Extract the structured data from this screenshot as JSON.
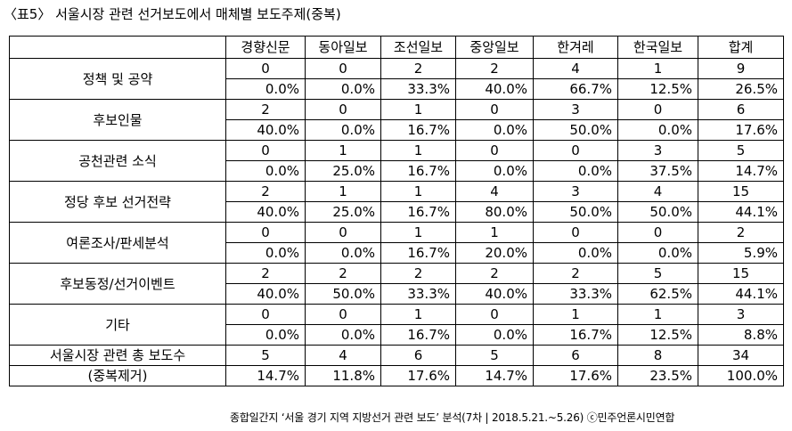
{
  "title": "〈표5〉 서울시장 관련 선거보도에서 매체별 보도주제(중복)",
  "columns": [
    "경향신문",
    "동아일보",
    "조선일보",
    "중앙일보",
    "한겨레",
    "한국일보",
    "합계"
  ],
  "rows": [
    {
      "category": "정책 및 공약",
      "counts": [
        "0",
        "0",
        "2",
        "2",
        "4",
        "1",
        "9"
      ],
      "percents": [
        "0.0%",
        "0.0%",
        "33.3%",
        "40.0%",
        "66.7%",
        "12.5%",
        "26.5%"
      ]
    },
    {
      "category": "후보인물",
      "counts": [
        "2",
        "0",
        "1",
        "0",
        "3",
        "0",
        "6"
      ],
      "percents": [
        "40.0%",
        "0.0%",
        "16.7%",
        "0.0%",
        "50.0%",
        "0.0%",
        "17.6%"
      ]
    },
    {
      "category": "공천관련 소식",
      "counts": [
        "0",
        "1",
        "1",
        "0",
        "0",
        "3",
        "5"
      ],
      "percents": [
        "0.0%",
        "25.0%",
        "16.7%",
        "0.0%",
        "0.0%",
        "37.5%",
        "14.7%"
      ]
    },
    {
      "category": "정당 후보 선거전략",
      "counts": [
        "2",
        "1",
        "1",
        "4",
        "3",
        "4",
        "15"
      ],
      "percents": [
        "40.0%",
        "25.0%",
        "16.7%",
        "80.0%",
        "50.0%",
        "50.0%",
        "44.1%"
      ]
    },
    {
      "category": "여론조사/판세분석",
      "counts": [
        "0",
        "0",
        "1",
        "1",
        "0",
        "0",
        "2"
      ],
      "percents": [
        "0.0%",
        "0.0%",
        "16.7%",
        "20.0%",
        "0.0%",
        "0.0%",
        "5.9%"
      ]
    },
    {
      "category": "후보동정/선거이벤트",
      "counts": [
        "2",
        "2",
        "2",
        "2",
        "2",
        "5",
        "15"
      ],
      "percents": [
        "40.0%",
        "50.0%",
        "33.3%",
        "40.0%",
        "33.3%",
        "62.5%",
        "44.1%"
      ]
    },
    {
      "category": "기타",
      "counts": [
        "0",
        "0",
        "1",
        "0",
        "1",
        "1",
        "3"
      ],
      "percents": [
        "0.0%",
        "0.0%",
        "16.7%",
        "0.0%",
        "16.7%",
        "12.5%",
        "8.8%"
      ]
    }
  ],
  "total": {
    "line1": "서울시장 관련 총 보도수",
    "line2": "(중복제거)",
    "counts": [
      "5",
      "4",
      "6",
      "5",
      "6",
      "8",
      "34"
    ],
    "percents": [
      "14.7%",
      "11.8%",
      "17.6%",
      "14.7%",
      "17.6%",
      "23.5%",
      "100.0%"
    ]
  },
  "source": "종합일간지 ‘서울 경기 지역 지방선거 관련 보도’ 분석(7차 | 2018.5.21.~5.26) ⓒ민주언론시민연합"
}
